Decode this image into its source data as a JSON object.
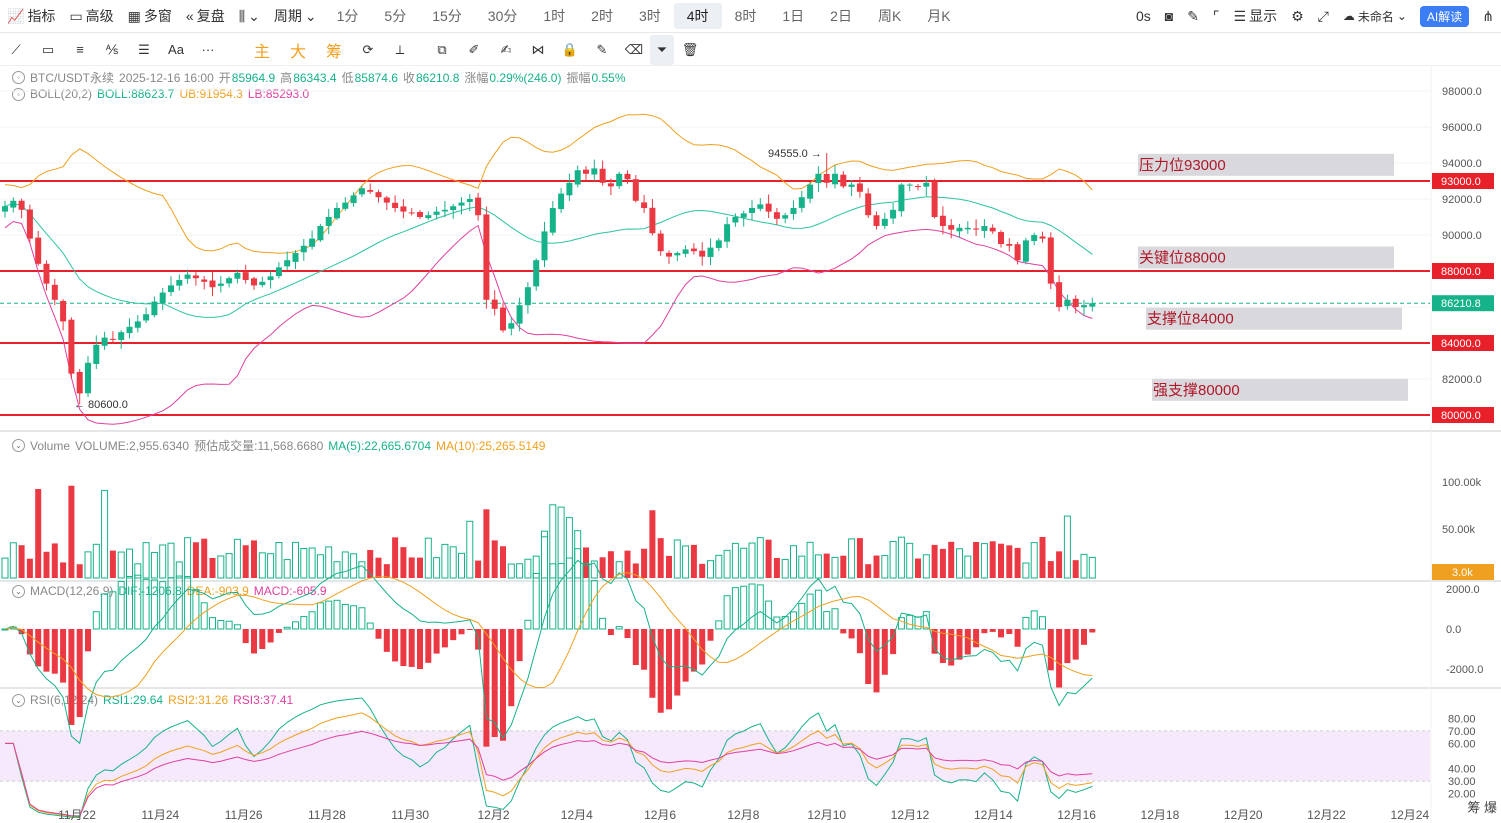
{
  "topbar": {
    "indicator": "指标",
    "advanced": "高级",
    "multiwindow": "多窗",
    "replay": "复盘",
    "period": "周期",
    "timeframes": [
      "1分",
      "5分",
      "15分",
      "30分",
      "1时",
      "2时",
      "3时",
      "4时",
      "8时",
      "1日",
      "2日",
      "周K",
      "月K"
    ],
    "active_timeframe": "4时",
    "countdown": "0s",
    "display": "显示",
    "layout_name": "未命名",
    "ai_button": "AI解读"
  },
  "toolbar2": {
    "main_label": "主",
    "big_label": "大",
    "chip_label": "筹",
    "font_label": "Aa",
    "more_label": "···"
  },
  "legend_main": {
    "symbol": "BTC/USDT永续",
    "datetime": "2025-12-16 16:00",
    "open_label": "开",
    "open": "85964.9",
    "high_label": "高",
    "high": "86343.4",
    "low_label": "低",
    "low": "85874.6",
    "close_label": "收",
    "close": "86210.8",
    "change_label": "涨幅",
    "change": "0.29%(246.0)",
    "amp_label": "振幅",
    "amp": "0.55%"
  },
  "legend_boll": {
    "name": "BOLL(20,2)",
    "boll": "BOLL:88623.7",
    "ub": "UB:91954.3",
    "lb": "LB:85293.0"
  },
  "legend_volume": {
    "name": "Volume",
    "vol": "VOLUME:2,955.6340",
    "est": "预估成交量:11,568.6680",
    "ma5": "MA(5):22,665.6704",
    "ma10": "MA(10):25,265.5149"
  },
  "legend_macd": {
    "name": "MACD(12,26,9)",
    "dif": "DIF:-1206.8",
    "dea": "DEA:-903.9",
    "macd": "MACD:-605.9"
  },
  "legend_rsi": {
    "name": "RSI(6,12,24)",
    "rsi1": "RSI1:29.64",
    "rsi2": "RSI2:31.26",
    "rsi3": "RSI3:37.41"
  },
  "price_axis": [
    "98000.0",
    "96000.0",
    "94000.0",
    "92000.0",
    "90000.0",
    "88000.0",
    "86000.0",
    "84000.0",
    "82000.0",
    "80000.0"
  ],
  "price_tags": [
    {
      "value": 93000,
      "label": "93000.0",
      "color": "#e8202a"
    },
    {
      "value": 88000,
      "label": "88000.0",
      "color": "#e8202a"
    },
    {
      "value": 86210.8,
      "label": "86210.8",
      "color": "#16b28a"
    },
    {
      "value": 84000,
      "label": "84000.0",
      "color": "#e8202a"
    },
    {
      "value": 80000,
      "label": "80000.0",
      "color": "#e8202a"
    }
  ],
  "level_labels": [
    {
      "text": "压力位93000",
      "price": 93900
    },
    {
      "text": "关键位88000",
      "price": 88750
    },
    {
      "text": "支撑位84000",
      "price": 85350
    },
    {
      "text": "强支撑80000",
      "price": 81400
    }
  ],
  "price_markers": [
    {
      "text": "94555.0",
      "price": 94555
    },
    {
      "text": "80600.0",
      "price": 80600
    }
  ],
  "vol_axis": [
    "100.00k",
    "50.00k"
  ],
  "vol_tag": "3.0k",
  "macd_axis": [
    "2000.0",
    "0.0",
    "-2000.0"
  ],
  "rsi_axis": [
    "80.00",
    "70.00",
    "60.00",
    "40.00",
    "30.00",
    "20.00"
  ],
  "date_axis": [
    "11月22",
    "11月24",
    "11月26",
    "11月28",
    "11月30",
    "12月2",
    "12月4",
    "12月6",
    "12月8",
    "12月10",
    "12月12",
    "12月14",
    "12月16",
    "12月18",
    "12月20",
    "12月22",
    "12月24"
  ],
  "bottom_right": "筹 爆",
  "colors": {
    "up": "#16b28a",
    "down": "#ea3943",
    "boll_mid": "#2ec4a0",
    "boll_ub": "#f0a020",
    "boll_lb": "#e040a0",
    "level": "#e8202a"
  },
  "chart_data": {
    "type": "candlestick",
    "interval": "4h",
    "close_series": [
      91600,
      91900,
      91400,
      89800,
      88400,
      87300,
      86400,
      85200,
      82300,
      81200,
      82900,
      83900,
      84300,
      84200,
      84600,
      84900,
      85200,
      85600,
      86300,
      86800,
      87200,
      87500,
      87800,
      87600,
      87400,
      87100,
      87300,
      87600,
      87900,
      87500,
      87200,
      87400,
      87700,
      88200,
      88600,
      89000,
      89400,
      89800,
      90500,
      91000,
      91500,
      91800,
      92200,
      92600,
      92400,
      92100,
      91800,
      91500,
      91300,
      91200,
      91000,
      91100,
      91300,
      91400,
      91600,
      91800,
      92000,
      91100,
      86400,
      85900,
      84700,
      85100,
      86100,
      87100,
      88600,
      90200,
      91500,
      92300,
      92900,
      93600,
      93400,
      93700,
      92900,
      92700,
      93400,
      93100,
      91900,
      91500,
      90100,
      89100,
      88800,
      89000,
      89200,
      89100,
      88800,
      89300,
      89700,
      90600,
      91000,
      91200,
      91500,
      91700,
      91300,
      90900,
      91100,
      91500,
      92100,
      92800,
      93400,
      92900,
      93400,
      92700,
      92800,
      92400,
      91100,
      90500,
      90900,
      91400,
      92800,
      92800,
      92700,
      92900,
      91000,
      90500,
      90300,
      90400,
      90400,
      90300,
      90500,
      90200,
      89500,
      89400,
      88600,
      89700,
      90000,
      89800,
      87300,
      86000,
      86400,
      86000,
      86100,
      86210.8
    ]
  }
}
